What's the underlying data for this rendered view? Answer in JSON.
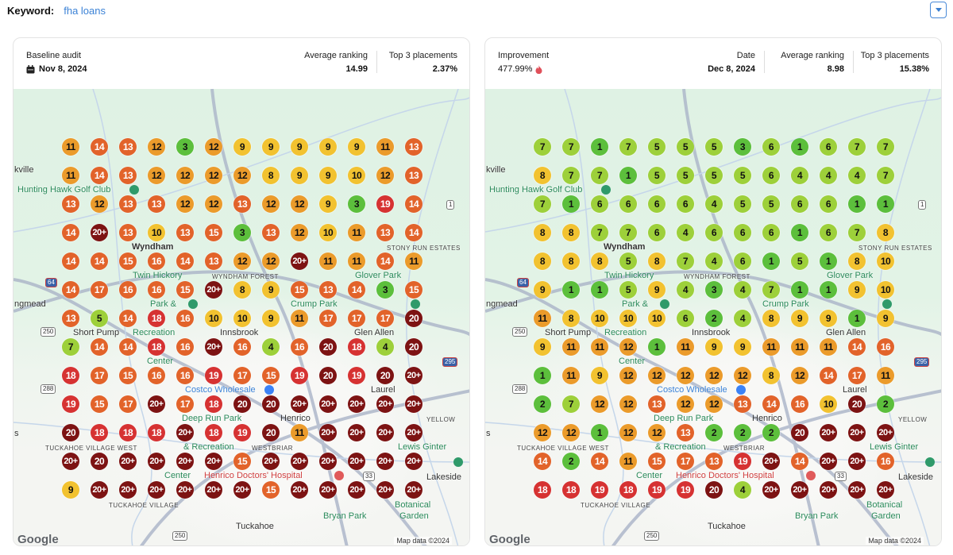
{
  "keyword": {
    "label": "Keyword:",
    "value": "fha loans"
  },
  "dropdown_icon": "caret-down-icon",
  "baseline": {
    "title": "Baseline audit",
    "date_icon": "calendar-icon",
    "date": "Nov 8, 2024",
    "avg_label": "Average ranking",
    "avg_value": "14.99",
    "top3_label": "Top 3 placements",
    "top3_value": "2.37%",
    "grid": [
      [
        "11",
        "14",
        "13",
        "12",
        "3",
        "12",
        "9",
        "9",
        "9",
        "9",
        "9",
        "11",
        "13"
      ],
      [
        "11",
        "14",
        "13",
        "12",
        "12",
        "12",
        "12",
        "8",
        "9",
        "9",
        "10",
        "12",
        "13"
      ],
      [
        "13",
        "12",
        "13",
        "13",
        "12",
        "12",
        "13",
        "12",
        "12",
        "9",
        "3",
        "19",
        "14"
      ],
      [
        "14",
        "20+",
        "13",
        "10",
        "13",
        "15",
        "3",
        "13",
        "12",
        "10",
        "11",
        "13",
        "14"
      ],
      [
        "14",
        "14",
        "15",
        "16",
        "14",
        "13",
        "12",
        "12",
        "20+",
        "11",
        "11",
        "14",
        "11"
      ],
      [
        "14",
        "17",
        "16",
        "16",
        "15",
        "20+",
        "8",
        "9",
        "15",
        "13",
        "14",
        "3",
        "15"
      ],
      [
        "13",
        "5",
        "14",
        "18",
        "16",
        "10",
        "10",
        "9",
        "11",
        "17",
        "17",
        "17",
        "20"
      ],
      [
        "7",
        "14",
        "14",
        "18",
        "16",
        "20+",
        "16",
        "4",
        "16",
        "20",
        "18",
        "4",
        "20"
      ],
      [
        "18",
        "17",
        "15",
        "16",
        "16",
        "19",
        "17",
        "15",
        "19",
        "20",
        "19",
        "20",
        "20+"
      ],
      [
        "19",
        "15",
        "17",
        "20+",
        "17",
        "18",
        "20",
        "20",
        "20+",
        "20+",
        "20+",
        "20+",
        "20+"
      ],
      [
        "20",
        "18",
        "18",
        "18",
        "20+",
        "18",
        "19",
        "20",
        "11",
        "20+",
        "20+",
        "20+",
        "20+"
      ],
      [
        "20+",
        "20",
        "20+",
        "20+",
        "20+",
        "20+",
        "15",
        "20+",
        "20+",
        "20+",
        "20+",
        "20+",
        "20+"
      ],
      [
        "9",
        "20+",
        "20+",
        "20+",
        "20+",
        "20+",
        "20+",
        "15",
        "20+",
        "20+",
        "20+",
        "20+",
        "20+"
      ]
    ]
  },
  "current": {
    "improvement_label": "Improvement",
    "improvement_value": "477.99%",
    "improvement_icon": "fire-icon",
    "date_label": "Date",
    "date": "Dec 8, 2024",
    "avg_label": "Average ranking",
    "avg_value": "8.98",
    "top3_label": "Top 3 placements",
    "top3_value": "15.38%",
    "grid": [
      [
        "7",
        "7",
        "1",
        "7",
        "5",
        "5",
        "5",
        "3",
        "6",
        "1",
        "6",
        "7",
        "7"
      ],
      [
        "8",
        "7",
        "7",
        "1",
        "5",
        "5",
        "5",
        "5",
        "6",
        "4",
        "4",
        "4",
        "7"
      ],
      [
        "7",
        "1",
        "6",
        "6",
        "6",
        "6",
        "4",
        "5",
        "5",
        "6",
        "6",
        "1",
        "1"
      ],
      [
        "8",
        "8",
        "7",
        "7",
        "6",
        "4",
        "6",
        "6",
        "6",
        "1",
        "6",
        "7",
        "8"
      ],
      [
        "8",
        "8",
        "8",
        "5",
        "8",
        "7",
        "4",
        "6",
        "1",
        "5",
        "1",
        "8",
        "10"
      ],
      [
        "9",
        "1",
        "1",
        "5",
        "9",
        "4",
        "3",
        "4",
        "7",
        "1",
        "1",
        "9",
        "10"
      ],
      [
        "11",
        "8",
        "10",
        "10",
        "10",
        "6",
        "2",
        "4",
        "8",
        "9",
        "9",
        "1",
        "9"
      ],
      [
        "9",
        "11",
        "11",
        "12",
        "1",
        "11",
        "9",
        "9",
        "11",
        "11",
        "11",
        "14",
        "16"
      ],
      [
        "1",
        "11",
        "9",
        "12",
        "12",
        "12",
        "12",
        "12",
        "8",
        "12",
        "14",
        "17",
        "11"
      ],
      [
        "2",
        "7",
        "12",
        "12",
        "13",
        "12",
        "12",
        "13",
        "14",
        "16",
        "10",
        "20",
        "2"
      ],
      [
        "12",
        "12",
        "1",
        "12",
        "12",
        "13",
        "2",
        "2",
        "2",
        "20",
        "20+",
        "20+",
        "20+"
      ],
      [
        "14",
        "2",
        "14",
        "11",
        "15",
        "17",
        "13",
        "19",
        "20+",
        "14",
        "20+",
        "20+",
        "16"
      ],
      [
        "18",
        "18",
        "19",
        "18",
        "19",
        "19",
        "20",
        "4",
        "20+",
        "20+",
        "20+",
        "20+",
        "20+"
      ]
    ]
  },
  "rank_colors": {
    "top3": "#5cbf3c",
    "4_7": "#9dd03a",
    "8_10": "#f2c230",
    "11_12": "#eb9b2b",
    "13_17": "#e2632a",
    "18_19": "#d63232",
    "20_plus": "#7d1313"
  },
  "map": {
    "labels": {
      "kville": "kville",
      "golf": "Hunting Hawk Golf Club",
      "wyndham": "Wyndham",
      "twin1": "Twin Hickory",
      "twin2": "Park &",
      "twin3": "Recreation",
      "twin4": "Center",
      "wforest": "WYNDHAM FOREST",
      "glover": "Glover Park",
      "stony": "STONY RUN ESTATES",
      "crump": "Crump Park",
      "ngmead": "ngmead",
      "shortpump": "Short Pump",
      "innsbrook": "Innsbrook",
      "glenallen": "Glen Allen",
      "costco": "Costco Wholesale",
      "laurel": "Laurel",
      "henrico": "Henrico",
      "deeprun1": "Deep Run Park",
      "deeprun2": "& Recreation",
      "deeprun3": "Center",
      "lewis1": "Lewis Ginter",
      "lewis2": "Botanical",
      "lewis3": "Garden",
      "yellow": "YELLOW",
      "tvw": "TUCKAHOE VILLAGE WEST",
      "tv": "TUCKAHOE VILLAGE",
      "westbriar": "WESTBRIAR",
      "hospital": "Henrico Doctors' Hospital",
      "lakeside": "Lakeside",
      "bryan": "Bryan Park",
      "tuckahoe": "Tuckahoe",
      "s": "s"
    },
    "shields": {
      "i64": "64",
      "r250a": "250",
      "r288": "288",
      "r250b": "250",
      "r295": "295",
      "us1": "1",
      "us33": "33"
    },
    "google": "Google",
    "attribution": "Map data ©2024"
  }
}
